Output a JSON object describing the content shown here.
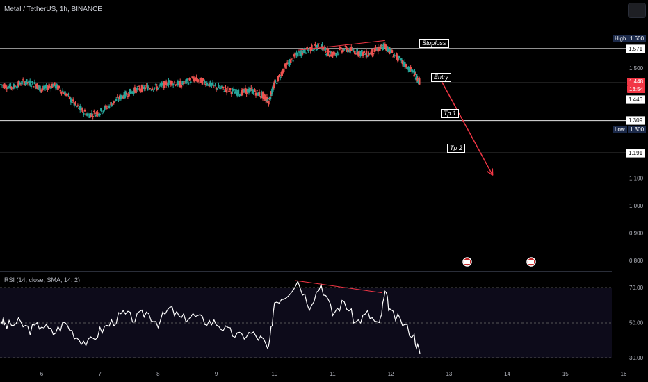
{
  "header": {
    "ticker": "Metal / TetherUS, 1h, BINANCE"
  },
  "indicator": {
    "rsi_label": "RSI (14, close, SMA, 14, 2)"
  },
  "price_tags": {
    "high_label": "High",
    "high_value": "1.600",
    "stoploss_value": "1.571",
    "current_value": "1.448",
    "countdown": "13:54",
    "entry_value": "1.446",
    "tp1_value": "1.309",
    "low_label": "Low",
    "low_value": "1.300",
    "tp2_value": "1.191"
  },
  "annotations": {
    "stoploss": "Stoploss",
    "entry": "Entry",
    "tp1": "Tp 1",
    "tp2": "Tp 2"
  },
  "colors": {
    "up": "#26a69a",
    "down": "#ef5350",
    "rsi_line": "#ffffff",
    "divergence": "#f23645",
    "arrow": "#f23645"
  },
  "chart_data": {
    "type": "line",
    "price_axis": {
      "ticks": [
        "1.500",
        "1.100",
        "1.000",
        "0.900",
        "0.800"
      ],
      "tick_values": [
        1.5,
        1.1,
        1.0,
        0.9,
        0.8
      ]
    },
    "x_axis": {
      "ticks": [
        "6",
        "7",
        "8",
        "9",
        "10",
        "11",
        "12",
        "13",
        "14",
        "15",
        "16"
      ],
      "tick_values": [
        6,
        7,
        8,
        9,
        10,
        11,
        12,
        13,
        14,
        15,
        16
      ]
    },
    "horizontal_levels": [
      1.571,
      1.446,
      1.309,
      1.191
    ],
    "price_series": {
      "x": [
        5.3,
        5.5,
        5.7,
        5.9,
        6.0,
        6.2,
        6.4,
        6.6,
        6.8,
        7.0,
        7.2,
        7.4,
        7.6,
        7.8,
        8.0,
        8.2,
        8.4,
        8.6,
        8.8,
        9.0,
        9.2,
        9.4,
        9.6,
        9.8,
        9.9,
        10.0,
        10.2,
        10.4,
        10.6,
        10.8,
        10.9,
        11.0,
        11.2,
        11.4,
        11.6,
        11.8,
        11.9,
        12.0,
        12.2,
        12.4,
        12.5
      ],
      "close": [
        1.44,
        1.43,
        1.45,
        1.44,
        1.42,
        1.44,
        1.41,
        1.36,
        1.33,
        1.34,
        1.37,
        1.4,
        1.42,
        1.43,
        1.43,
        1.45,
        1.44,
        1.46,
        1.45,
        1.43,
        1.42,
        1.41,
        1.42,
        1.4,
        1.38,
        1.44,
        1.51,
        1.55,
        1.57,
        1.58,
        1.56,
        1.55,
        1.57,
        1.56,
        1.55,
        1.57,
        1.58,
        1.56,
        1.52,
        1.48,
        1.448
      ]
    },
    "rsi_axis": {
      "ticks": [
        "70.00",
        "50.00",
        "30.00"
      ],
      "tick_values": [
        70,
        50,
        30
      ]
    },
    "rsi_series": {
      "x": [
        5.3,
        5.4,
        5.6,
        5.8,
        6.0,
        6.2,
        6.4,
        6.6,
        6.8,
        7.0,
        7.2,
        7.4,
        7.6,
        7.8,
        8.0,
        8.2,
        8.4,
        8.6,
        8.8,
        9.0,
        9.2,
        9.4,
        9.6,
        9.8,
        9.9,
        10.0,
        10.2,
        10.4,
        10.6,
        10.8,
        11.0,
        11.2,
        11.4,
        11.6,
        11.8,
        11.9,
        12.0,
        12.2,
        12.4,
        12.5
      ],
      "values": [
        52,
        48,
        50,
        46,
        49,
        44,
        50,
        42,
        38,
        45,
        50,
        55,
        52,
        56,
        50,
        58,
        52,
        54,
        51,
        50,
        45,
        42,
        44,
        40,
        34,
        62,
        66,
        74,
        60,
        72,
        55,
        62,
        50,
        55,
        48,
        67,
        55,
        50,
        42,
        32
      ]
    },
    "divergence_lines": {
      "price": {
        "x": [
          10.4,
          11.9
        ],
        "y": [
          1.565,
          1.6
        ]
      },
      "rsi": {
        "x": [
          10.35,
          11.85
        ],
        "y": [
          74,
          67
        ]
      }
    },
    "projection_arrow": {
      "x": [
        12.85,
        13.75
      ],
      "y": [
        1.46,
        1.11
      ]
    }
  }
}
